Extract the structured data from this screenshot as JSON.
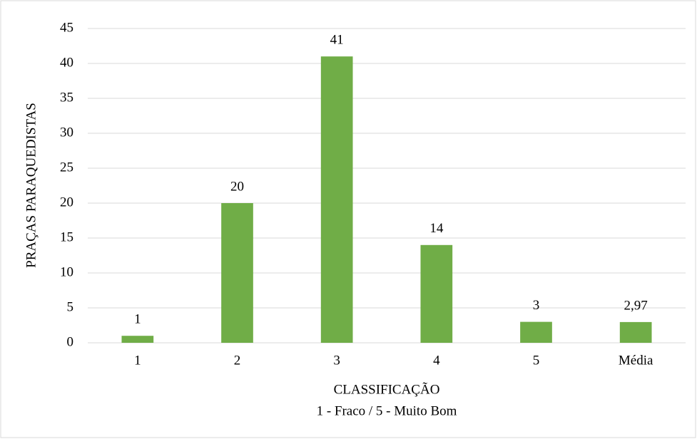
{
  "chart_data": {
    "type": "bar",
    "x_label": [
      "CLASSIFICAÇÃO",
      "1 - Fraco / 5 - Muito Bom"
    ],
    "y_label": "PRAÇAS PARAQUEDISTAS",
    "categories": [
      "1",
      "2",
      "3",
      "4",
      "5",
      "Média"
    ],
    "values": [
      1,
      20,
      41,
      14,
      3,
      2.97
    ],
    "value_labels": [
      "1",
      "20",
      "41",
      "14",
      "3",
      "2,97"
    ],
    "color": "#70ad47",
    "ylim": [
      0,
      45
    ],
    "yticks": [
      0,
      5,
      10,
      15,
      20,
      25,
      30,
      35,
      40,
      45
    ],
    "grid": true
  }
}
